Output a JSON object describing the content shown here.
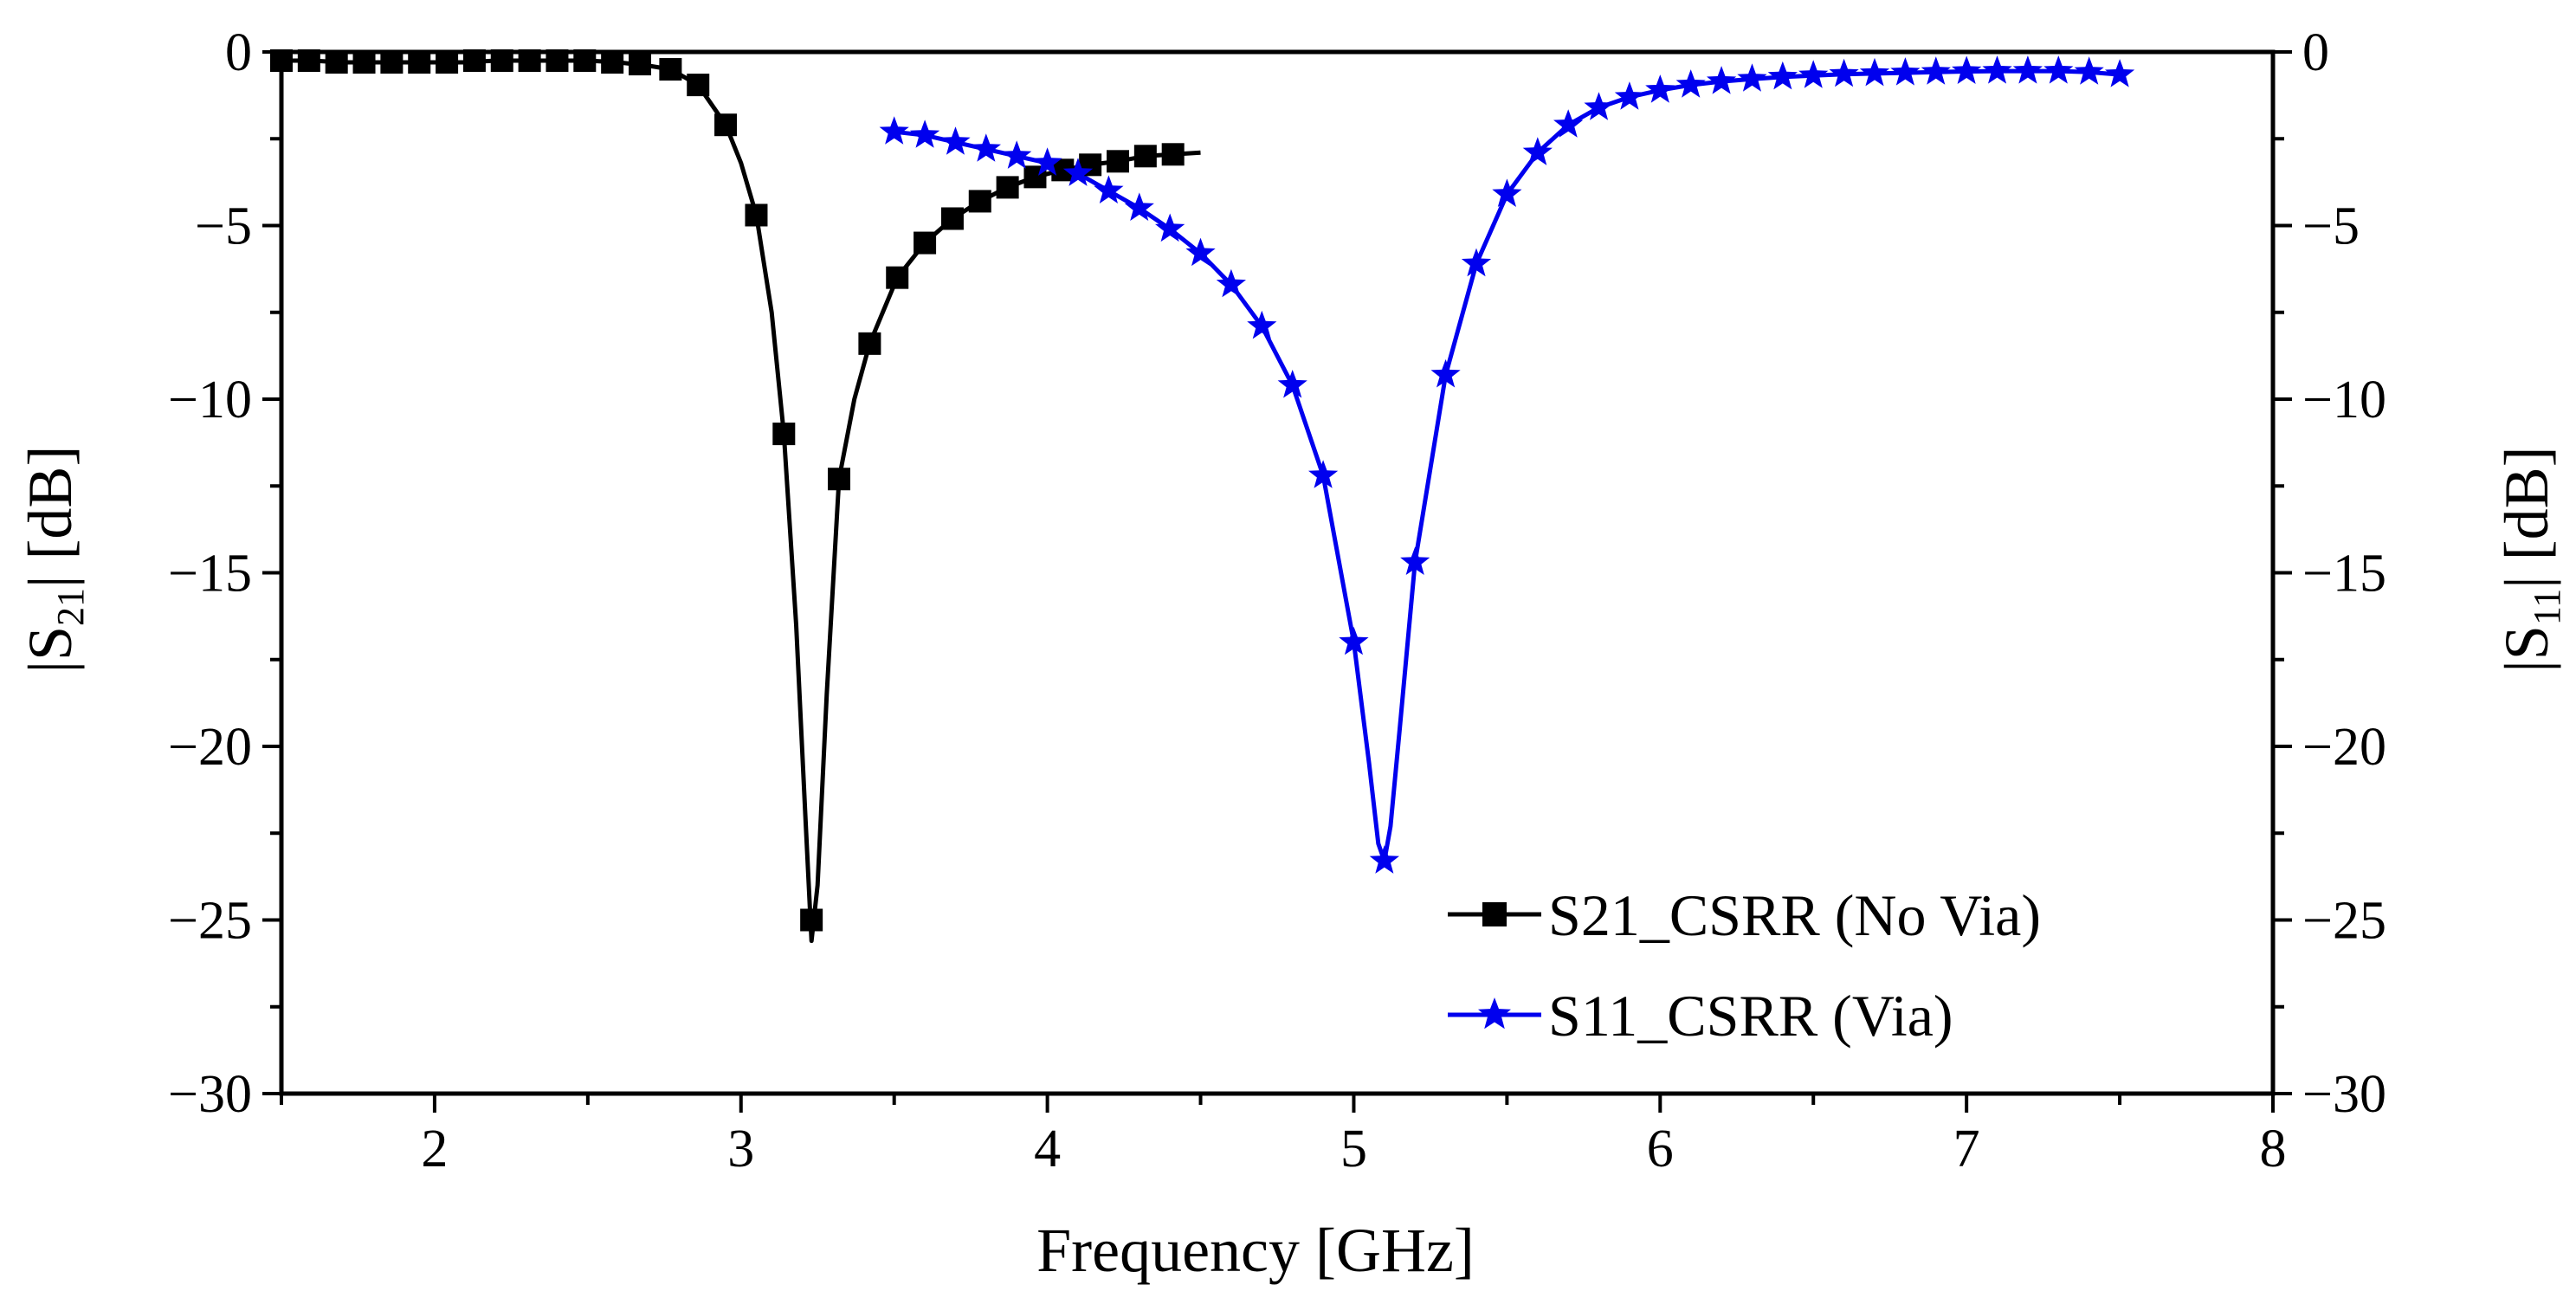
{
  "chart_data": {
    "type": "line",
    "xlabel": "Frequency [GHz]",
    "ylabel_left": {
      "prefix": "|S",
      "sub": "21",
      "suffix": "| [dB]"
    },
    "ylabel_right": {
      "prefix": "|S",
      "sub": "11",
      "suffix": "| [dB]"
    },
    "xlim": [
      1.5,
      8
    ],
    "ylim": [
      -30,
      0
    ],
    "xticks": [
      "2",
      "3",
      "4",
      "5",
      "6",
      "7",
      "8"
    ],
    "xtick_values": [
      2,
      3,
      4,
      5,
      6,
      7,
      8
    ],
    "yticks": [
      "0",
      "−5",
      "−10",
      "−15",
      "−20",
      "−25",
      "−30"
    ],
    "ytick_values": [
      0,
      -5,
      -10,
      -15,
      -20,
      -25,
      -30
    ],
    "grid": false,
    "legend_position": "bottom-right",
    "series": [
      {
        "name": "S21_CSRR (No Via)",
        "color": "#000000",
        "marker": "square",
        "x": [
          1.5,
          1.6,
          1.7,
          1.8,
          1.9,
          2.0,
          2.1,
          2.2,
          2.3,
          2.4,
          2.5,
          2.6,
          2.7,
          2.77,
          2.86,
          2.95,
          3.0,
          3.05,
          3.1,
          3.14,
          3.18,
          3.21,
          3.23,
          3.25,
          3.28,
          3.32,
          3.37,
          3.42,
          3.51,
          3.6,
          3.69,
          3.78,
          3.87,
          3.96,
          4.05,
          4.14,
          4.23,
          4.32,
          4.41,
          4.5
        ],
        "y": [
          -0.25,
          -0.25,
          -0.3,
          -0.3,
          -0.3,
          -0.3,
          -0.3,
          -0.25,
          -0.25,
          -0.25,
          -0.25,
          -0.3,
          -0.4,
          -0.5,
          -0.95,
          -2.1,
          -3.2,
          -4.7,
          -7.5,
          -11.0,
          -16.5,
          -22.0,
          -25.6,
          -24.0,
          -18.5,
          -12.3,
          -10.0,
          -8.4,
          -6.5,
          -5.5,
          -4.8,
          -4.3,
          -3.9,
          -3.6,
          -3.4,
          -3.25,
          -3.15,
          -3.0,
          -2.95,
          -2.9
        ],
        "marker_x": [
          1.5,
          1.59,
          1.68,
          1.77,
          1.86,
          1.95,
          2.04,
          2.13,
          2.22,
          2.31,
          2.4,
          2.49,
          2.58,
          2.67,
          2.77,
          2.86,
          2.95,
          3.05,
          3.14,
          3.23,
          3.32,
          3.42,
          3.51,
          3.6,
          3.69,
          3.78,
          3.87,
          3.96,
          4.05,
          4.14,
          4.23,
          4.32,
          4.41
        ],
        "marker_y": [
          -0.25,
          -0.25,
          -0.3,
          -0.3,
          -0.3,
          -0.3,
          -0.3,
          -0.25,
          -0.25,
          -0.25,
          -0.25,
          -0.25,
          -0.3,
          -0.35,
          -0.5,
          -0.95,
          -2.1,
          -4.7,
          -11.0,
          -25.0,
          -12.3,
          -8.4,
          -6.5,
          -5.5,
          -4.8,
          -4.3,
          -3.9,
          -3.6,
          -3.4,
          -3.25,
          -3.15,
          -3.0,
          -2.95
        ]
      },
      {
        "name": "S11_CSRR (Via)",
        "color": "#0000ee",
        "marker": "star",
        "x": [
          3.5,
          3.6,
          3.7,
          3.8,
          3.9,
          4.0,
          4.1,
          4.2,
          4.3,
          4.4,
          4.5,
          4.6,
          4.7,
          4.8,
          4.9,
          5.0,
          5.05,
          5.08,
          5.1,
          5.12,
          5.15,
          5.2,
          5.3,
          5.4,
          5.5,
          5.6,
          5.7,
          5.8,
          5.9,
          6.0,
          6.1,
          6.2,
          6.3,
          6.4,
          6.5,
          6.6,
          6.7,
          6.8,
          6.9,
          7.0,
          7.1,
          7.2,
          7.3,
          7.4,
          7.5
        ],
        "y": [
          -2.3,
          -2.4,
          -2.6,
          -2.8,
          -3.0,
          -3.2,
          -3.5,
          -4.0,
          -4.5,
          -5.1,
          -5.8,
          -6.7,
          -7.9,
          -9.6,
          -12.2,
          -17.0,
          -20.5,
          -22.8,
          -23.3,
          -22.3,
          -19.5,
          -14.7,
          -9.3,
          -6.1,
          -4.1,
          -2.9,
          -2.1,
          -1.6,
          -1.3,
          -1.1,
          -0.95,
          -0.85,
          -0.78,
          -0.72,
          -0.68,
          -0.64,
          -0.62,
          -0.6,
          -0.58,
          -0.56,
          -0.55,
          -0.55,
          -0.55,
          -0.58,
          -0.65
        ],
        "marker_x": [
          3.5,
          3.6,
          3.7,
          3.8,
          3.9,
          4.0,
          4.1,
          4.2,
          4.3,
          4.4,
          4.5,
          4.6,
          4.7,
          4.8,
          4.9,
          5.0,
          5.1,
          5.2,
          5.3,
          5.4,
          5.5,
          5.6,
          5.7,
          5.8,
          5.9,
          6.0,
          6.1,
          6.2,
          6.3,
          6.4,
          6.5,
          6.6,
          6.7,
          6.8,
          6.9,
          7.0,
          7.1,
          7.2,
          7.3,
          7.4,
          7.5
        ],
        "marker_y": [
          -2.3,
          -2.4,
          -2.6,
          -2.8,
          -3.0,
          -3.2,
          -3.5,
          -4.0,
          -4.5,
          -5.1,
          -5.8,
          -6.7,
          -7.9,
          -9.6,
          -12.2,
          -17.0,
          -23.3,
          -14.7,
          -9.3,
          -6.1,
          -4.1,
          -2.9,
          -2.1,
          -1.6,
          -1.3,
          -1.1,
          -0.95,
          -0.85,
          -0.78,
          -0.72,
          -0.68,
          -0.64,
          -0.62,
          -0.6,
          -0.58,
          -0.56,
          -0.55,
          -0.55,
          -0.55,
          -0.58,
          -0.65
        ]
      }
    ]
  }
}
